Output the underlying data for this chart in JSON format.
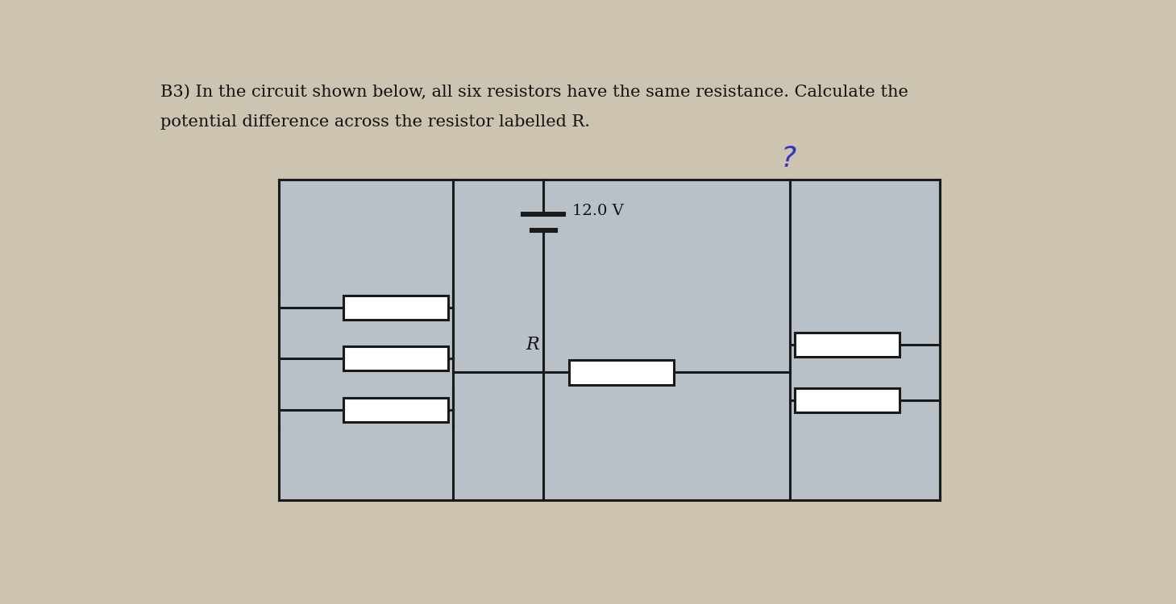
{
  "title_line1": "B3) In the circuit shown below, all six resistors have the same resistance. Calculate the",
  "title_line2": "potential difference across the resistor labelled R.",
  "voltage_label": "12.0 V",
  "R_label": "R",
  "question_mark": "?",
  "bg_color": "#ccc4b0",
  "circuit_bg": "#b8c0c8",
  "circuit_color": "#1a1a1a",
  "text_color": "#111111",
  "question_color": "#3535bb",
  "lw": 2.2,
  "rw": 0.115,
  "rh": 0.052
}
